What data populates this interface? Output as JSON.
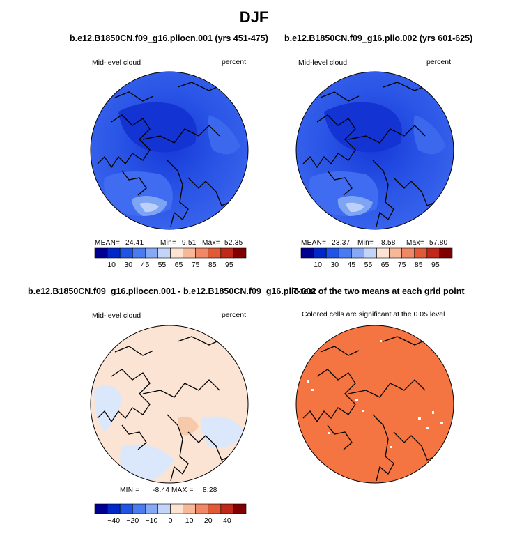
{
  "figure": {
    "title": "DJF"
  },
  "panels": [
    {
      "title": "b.e12.B1850CN.f09_g16.pliocn.001 (yrs 451-475)",
      "left_label": "Mid-level cloud",
      "right_label": "percent",
      "stats": {
        "mean_label": "MEAN=",
        "mean": "24.41",
        "min_label": "Min=",
        "min": "9.51",
        "max_label": "Max=",
        "max": "52.35"
      }
    },
    {
      "title": "b.e12.B1850CN.f09_g16.plio.002 (yrs 601-625)",
      "left_label": "Mid-level cloud",
      "right_label": "percent",
      "stats": {
        "mean_label": "MEAN=",
        "mean": "23.37",
        "min_label": "Min=",
        "min": "8.58",
        "max_label": "Max=",
        "max": "57.80"
      }
    },
    {
      "title": "b.e12.B1850CN.f09_g16.plioccn.001 - b.e12.B1850CN.f09_g16.plio.002",
      "left_label": "Mid-level cloud",
      "right_label": "percent",
      "stats": {
        "min_label": "MIN =",
        "min": "-8.44",
        "max_label": "MAX =",
        "max": "8.28"
      }
    },
    {
      "title": "T-test of the two means at each grid point",
      "subtitle": "Colored cells are significant at the 0.05 level"
    }
  ],
  "chart_data": [
    {
      "type": "heatmap",
      "projection": "north-polar-stereographic",
      "variable": "Mid-level cloud",
      "units": "percent",
      "dominant_value_range": [
        10,
        40
      ],
      "colorbar": {
        "ticks": [
          "10",
          "30",
          "45",
          "55",
          "65",
          "75",
          "85",
          "95"
        ],
        "colors": [
          "#000090",
          "#0028c8",
          "#1e55e6",
          "#4a7cf0",
          "#87a8f5",
          "#c2d4f8",
          "#fde3d4",
          "#f8b898",
          "#f08866",
          "#e05a38",
          "#c02818",
          "#800000"
        ]
      }
    },
    {
      "type": "heatmap",
      "projection": "north-polar-stereographic",
      "variable": "Mid-level cloud",
      "units": "percent",
      "dominant_value_range": [
        10,
        40
      ]
    },
    {
      "type": "heatmap",
      "projection": "north-polar-stereographic",
      "variable": "Mid-level cloud difference",
      "units": "percent",
      "dominant_value_range": [
        -10,
        10
      ],
      "colorbar": {
        "ticks": [
          "−40",
          "−20",
          "−10",
          "0",
          "10",
          "20",
          "40"
        ],
        "colors": [
          "#000090",
          "#0028c8",
          "#1e55e6",
          "#4a7cf0",
          "#87a8f5",
          "#c2d4f8",
          "#fde3d4",
          "#f8b898",
          "#f08866",
          "#e05a38",
          "#c02818",
          "#800000"
        ]
      }
    },
    {
      "type": "heatmap",
      "projection": "north-polar-stereographic",
      "variable": "T-test significance (p < 0.05)",
      "significant_color": "#f57542",
      "nonsignificant_color": "#ffffff"
    }
  ],
  "colors": {
    "map_dark": "#1a3fe0",
    "map_mid": "#2f5de8",
    "map_light": "#6f98f2",
    "map_bright": "#a8c4f8",
    "diff_warm": "#fbe4d4",
    "diff_warmer": "#f7c9ab",
    "diff_cool": "#dbe7fb",
    "ttest": "#f57542",
    "coast": "#000000"
  }
}
